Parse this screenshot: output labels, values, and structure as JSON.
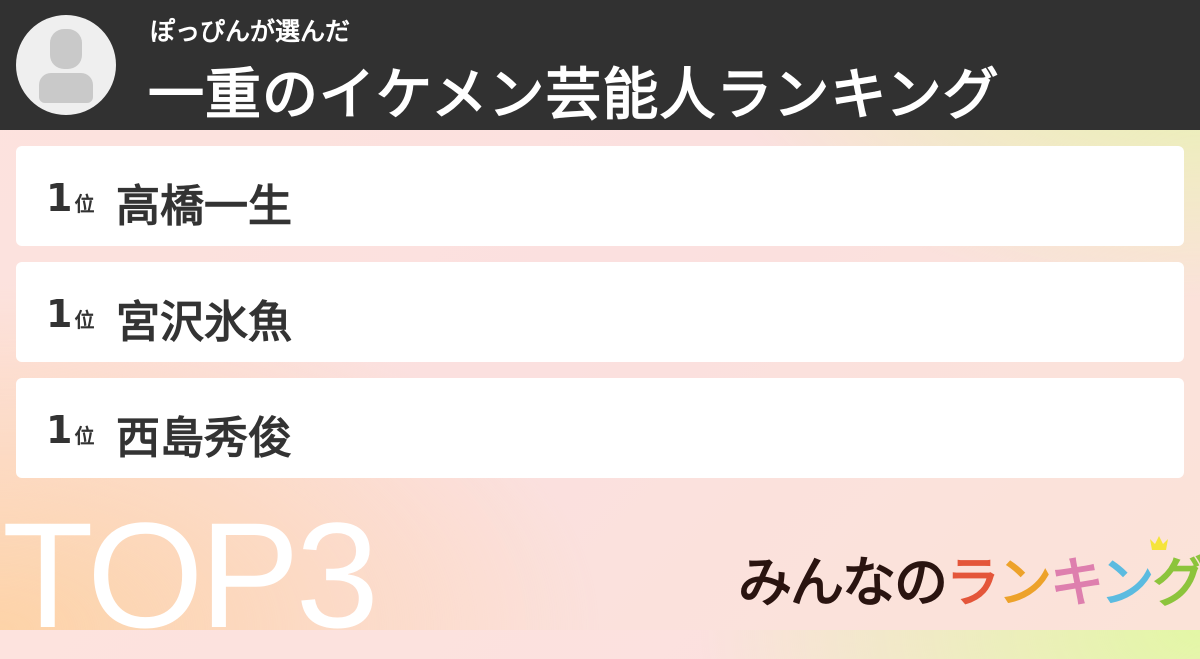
{
  "header": {
    "subtitle": "ぽっぴんが選んだ",
    "title": "一重のイケメン芸能人ランキング",
    "avatar_icon": "user-silhouette-icon"
  },
  "ranking": [
    {
      "rank": "1",
      "unit": "位",
      "name": "高橋一生"
    },
    {
      "rank": "1",
      "unit": "位",
      "name": "宮沢氷魚"
    },
    {
      "rank": "1",
      "unit": "位",
      "name": "西島秀俊"
    }
  ],
  "badge": "TOP3",
  "logo": {
    "prefix": "みんなの",
    "chars": [
      "ラ",
      "ン",
      "キ",
      "ン",
      "グ"
    ],
    "colors": [
      "#e4563a",
      "#eda22a",
      "#de7fae",
      "#5bbbe0",
      "#8cc43c"
    ],
    "crown_color": "#f5e43a"
  }
}
